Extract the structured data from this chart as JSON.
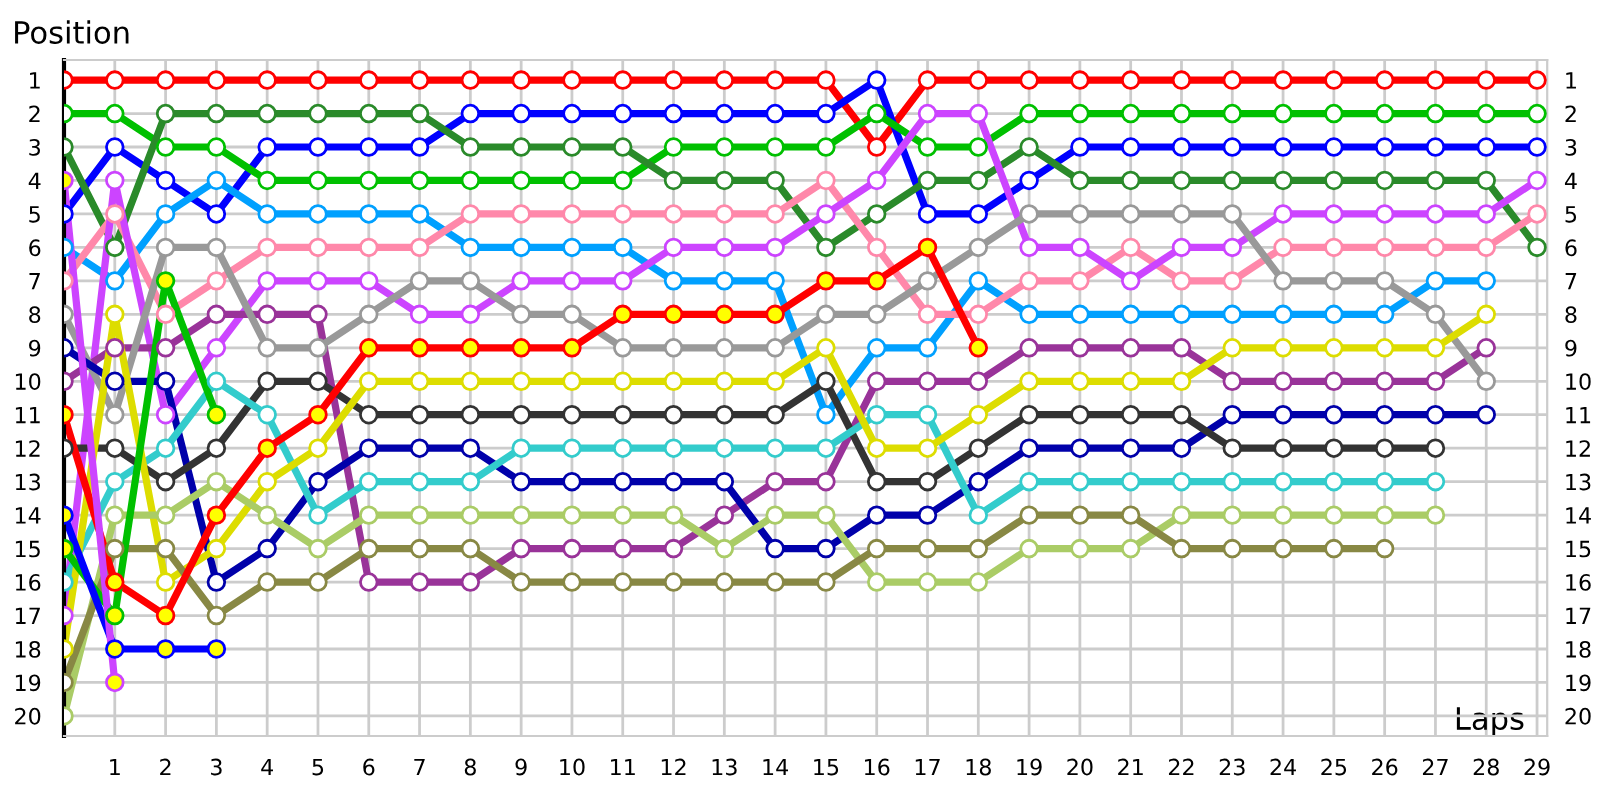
{
  "chart_data": {
    "type": "line",
    "xlabel": "Laps",
    "ylabel": "Position",
    "x": [
      0,
      1,
      2,
      3,
      4,
      5,
      6,
      7,
      8,
      9,
      10,
      11,
      12,
      13,
      14,
      15,
      16,
      17,
      18,
      19,
      20,
      21,
      22,
      23,
      24,
      25,
      26,
      27,
      28,
      29
    ],
    "xlim": [
      0,
      29.2
    ],
    "xticks": [
      1,
      2,
      3,
      4,
      5,
      6,
      7,
      8,
      9,
      10,
      11,
      12,
      13,
      14,
      15,
      16,
      17,
      18,
      19,
      20,
      21,
      22,
      23,
      24,
      25,
      26,
      27,
      28,
      29
    ],
    "ylim": [
      20.6,
      0.4
    ],
    "yticks": [
      1,
      2,
      3,
      4,
      5,
      6,
      7,
      8,
      9,
      10,
      11,
      12,
      13,
      14,
      15,
      16,
      17,
      18,
      19,
      20
    ],
    "y2lim": [
      20.6,
      0.4
    ],
    "y2ticks": [
      1,
      2,
      3,
      4,
      5,
      6,
      7,
      8,
      9,
      10,
      11,
      12,
      13,
      14,
      15,
      16,
      17,
      18,
      19,
      20
    ],
    "grid": true,
    "legend": false,
    "marker": "circle",
    "line_style": "solid",
    "series": [
      {
        "color": "#ff0000",
        "values": [
          1,
          1,
          1,
          1,
          1,
          1,
          1,
          1,
          1,
          1,
          1,
          1,
          1,
          1,
          1,
          1,
          3,
          1,
          1,
          1,
          1,
          1,
          1,
          1,
          1,
          1,
          1,
          1,
          1,
          1
        ]
      },
      {
        "color": "#0000ff",
        "values": [
          5,
          3,
          4,
          5,
          3,
          3,
          3,
          3,
          2,
          2,
          2,
          2,
          2,
          2,
          2,
          2,
          1,
          5,
          5,
          4,
          3,
          3,
          3,
          3,
          3,
          3,
          3,
          3,
          3,
          3
        ]
      },
      {
        "color": "#00c000",
        "values": [
          2,
          2,
          3,
          3,
          4,
          4,
          4,
          4,
          4,
          4,
          4,
          4,
          3,
          3,
          3,
          3,
          2,
          3,
          3,
          2,
          2,
          2,
          2,
          2,
          2,
          2,
          2,
          2,
          2,
          2
        ]
      },
      {
        "color": "#2a8a2a",
        "values": [
          3,
          6,
          2,
          2,
          2,
          2,
          2,
          2,
          3,
          3,
          3,
          3,
          4,
          4,
          4,
          6,
          5,
          4,
          4,
          3,
          4,
          4,
          4,
          4,
          4,
          4,
          4,
          4,
          4,
          6
        ]
      },
      {
        "color": "#00a0ff",
        "values": [
          6,
          7,
          5,
          4,
          5,
          5,
          5,
          5,
          6,
          6,
          6,
          6,
          7,
          7,
          7,
          11,
          9,
          9,
          7,
          8,
          8,
          8,
          8,
          8,
          8,
          8,
          8,
          7,
          7,
          null
        ]
      },
      {
        "color": "#ff88aa",
        "values": [
          7,
          5,
          8,
          7,
          6,
          6,
          6,
          6,
          5,
          5,
          5,
          5,
          5,
          5,
          5,
          4,
          6,
          8,
          8,
          7,
          7,
          6,
          7,
          7,
          6,
          6,
          6,
          6,
          6,
          5
        ]
      },
      {
        "color": "#cc44ff",
        "values": [
          17,
          4,
          11,
          9,
          7,
          7,
          7,
          8,
          8,
          7,
          7,
          7,
          6,
          6,
          6,
          5,
          4,
          2,
          2,
          6,
          6,
          7,
          6,
          6,
          5,
          5,
          5,
          5,
          5,
          4
        ]
      },
      {
        "color": "#993399",
        "values": [
          10,
          9,
          9,
          8,
          8,
          8,
          16,
          16,
          16,
          15,
          15,
          15,
          15,
          14,
          13,
          13,
          10,
          10,
          10,
          9,
          9,
          9,
          9,
          10,
          10,
          10,
          10,
          10,
          9,
          null
        ]
      },
      {
        "color": "#999999",
        "values": [
          8,
          11,
          6,
          6,
          9,
          9,
          8,
          7,
          7,
          8,
          8,
          9,
          9,
          9,
          9,
          8,
          8,
          7,
          6,
          5,
          5,
          5,
          5,
          5,
          7,
          7,
          7,
          8,
          10,
          null
        ]
      },
      {
        "color": "#0000aa",
        "values": [
          9,
          10,
          10,
          16,
          15,
          13,
          12,
          12,
          12,
          13,
          13,
          13,
          13,
          13,
          15,
          15,
          14,
          14,
          13,
          12,
          12,
          12,
          12,
          11,
          11,
          11,
          11,
          11,
          11,
          null
        ]
      },
      {
        "color": "#333333",
        "values": [
          12,
          12,
          13,
          12,
          10,
          10,
          11,
          11,
          11,
          11,
          11,
          11,
          11,
          11,
          11,
          10,
          13,
          13,
          12,
          11,
          11,
          11,
          11,
          12,
          12,
          12,
          12,
          12,
          null,
          null
        ]
      },
      {
        "color": "#33cccc",
        "values": [
          16,
          13,
          12,
          10,
          11,
          14,
          13,
          13,
          13,
          12,
          12,
          12,
          12,
          12,
          12,
          12,
          11,
          11,
          14,
          13,
          13,
          13,
          13,
          13,
          13,
          13,
          13,
          13,
          null,
          null
        ]
      },
      {
        "color": "#dddd00",
        "values": [
          18,
          8,
          16,
          15,
          13,
          12,
          10,
          10,
          10,
          10,
          10,
          10,
          10,
          10,
          10,
          9,
          12,
          12,
          11,
          10,
          10,
          10,
          10,
          9,
          9,
          9,
          9,
          9,
          8,
          null
        ]
      },
      {
        "color": "#aacc66",
        "values": [
          20,
          14,
          14,
          13,
          14,
          15,
          14,
          14,
          14,
          14,
          14,
          14,
          14,
          15,
          14,
          14,
          16,
          16,
          16,
          15,
          15,
          15,
          14,
          14,
          14,
          14,
          14,
          14,
          null,
          null
        ]
      },
      {
        "color": "#888844",
        "values": [
          19,
          15,
          15,
          17,
          16,
          16,
          15,
          15,
          15,
          16,
          16,
          16,
          16,
          16,
          16,
          16,
          15,
          15,
          15,
          14,
          14,
          14,
          15,
          15,
          15,
          15,
          15,
          null,
          null,
          null
        ]
      },
      {
        "color": "#ff0000",
        "values": [
          11,
          16,
          17,
          14,
          12,
          11,
          9,
          9,
          9,
          9,
          9,
          8,
          8,
          8,
          8,
          7,
          7,
          6,
          9,
          null,
          null,
          null,
          null,
          null,
          null,
          null,
          null,
          null,
          null,
          null
        ],
        "colors": [
          "#ffff00",
          "#ffff00",
          "#ffff00",
          "#ffff00",
          "#ffff00",
          "#ffff00",
          "#ffff00",
          "#ffff00",
          "#ffff00",
          "#ffff00",
          "#ffff00",
          "#ffff00",
          "#ffff00",
          "#ffff00",
          "#ffff00",
          "#ffff00",
          "#ffff00",
          "#ffff00",
          "#ffff00",
          null,
          null,
          null,
          null,
          null,
          null,
          null,
          null,
          null,
          null,
          null
        ]
      },
      {
        "color": "#00c000",
        "values": [
          15,
          17,
          7,
          11,
          null,
          null,
          null,
          null,
          null,
          null,
          null,
          null,
          null,
          null,
          null,
          null,
          null,
          null,
          null,
          null,
          null,
          null,
          null,
          null,
          null,
          null,
          null,
          null,
          null,
          null
        ],
        "colors": [
          "#ffff00",
          "#ffff00",
          "#ffff00",
          "#ffff00",
          null,
          null,
          null,
          null,
          null,
          null,
          null,
          null,
          null,
          null,
          null,
          null,
          null,
          null,
          null,
          null,
          null,
          null,
          null,
          null,
          null,
          null,
          null,
          null,
          null,
          null
        ]
      },
      {
        "color": "#0000ff",
        "values": [
          14,
          18,
          18,
          18,
          null,
          null,
          null,
          null,
          null,
          null,
          null,
          null,
          null,
          null,
          null,
          null,
          null,
          null,
          null,
          null,
          null,
          null,
          null,
          null,
          null,
          null,
          null,
          null,
          null,
          null
        ],
        "colors": [
          "#ffff00",
          "#ffff00",
          "#ffff00",
          "#ffff00",
          null,
          null,
          null,
          null,
          null,
          null,
          null,
          null,
          null,
          null,
          null,
          null,
          null,
          null,
          null,
          null,
          null,
          null,
          null,
          null,
          null,
          null,
          null,
          null,
          null,
          null
        ]
      },
      {
        "color": "#cc44ff",
        "values": [
          4,
          19,
          null,
          null,
          null,
          null,
          null,
          null,
          null,
          null,
          null,
          null,
          null,
          null,
          null,
          null,
          null,
          null,
          null,
          null,
          null,
          null,
          null,
          null,
          null,
          null,
          null,
          null,
          null,
          null
        ],
        "colors": [
          "#ffff00",
          "#ffff00",
          null,
          null,
          null,
          null,
          null,
          null,
          null,
          null,
          null,
          null,
          null,
          null,
          null,
          null,
          null,
          null,
          null,
          null,
          null,
          null,
          null,
          null,
          null,
          null,
          null,
          null,
          null,
          null
        ]
      }
    ]
  }
}
